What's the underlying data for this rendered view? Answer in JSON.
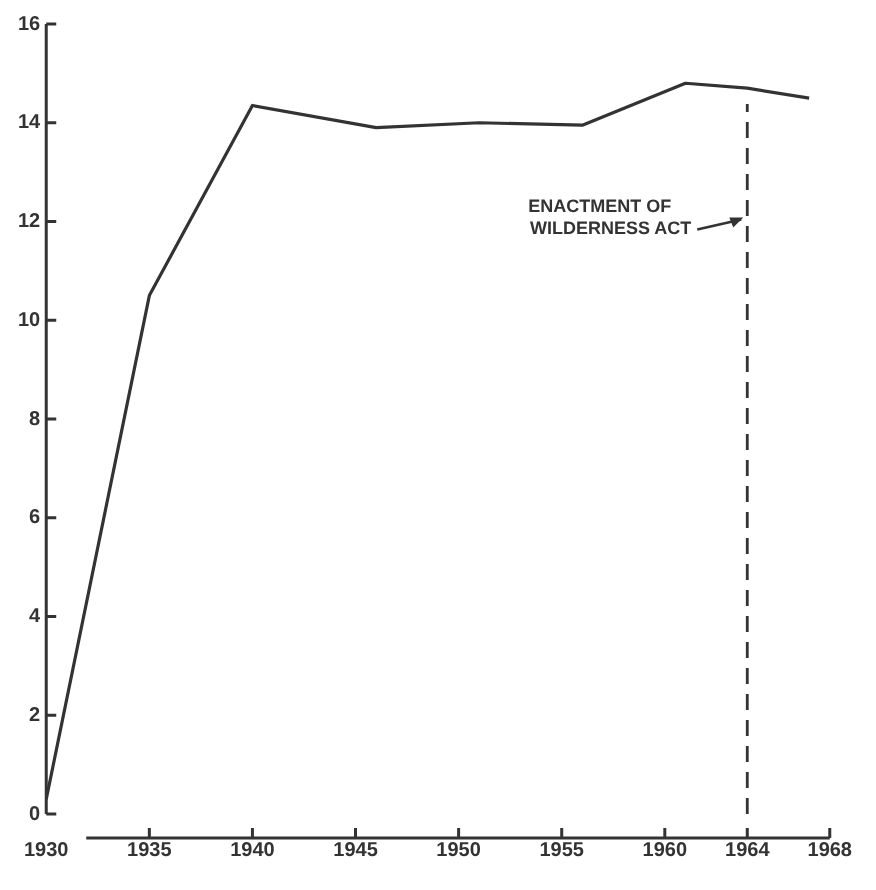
{
  "chart_data": {
    "type": "line",
    "x": [
      1930,
      1935,
      1940,
      1946,
      1951,
      1956,
      1961,
      1964,
      1967
    ],
    "series": [
      {
        "color": "#333333",
        "values": [
          0.3,
          10.5,
          14.35,
          13.9,
          14.0,
          13.95,
          14.8,
          14.7,
          14.5
        ]
      }
    ],
    "xlim": [
      1930,
      1968
    ],
    "xticks": [
      1930,
      1935,
      1940,
      1945,
      1950,
      1955,
      1960,
      1964,
      1968
    ],
    "ylim": [
      0,
      16
    ],
    "yticks": [
      0,
      2,
      4,
      6,
      8,
      10,
      12,
      14,
      16
    ],
    "grid": false,
    "legend": false,
    "marker": "none",
    "line_style": "solid",
    "ref_lines": [
      {
        "axis": "x",
        "value": 1964,
        "label": "ENACTMENT OF\nWILDERNESS ACT",
        "line_style": "dashed",
        "color": "#333333"
      }
    ]
  }
}
